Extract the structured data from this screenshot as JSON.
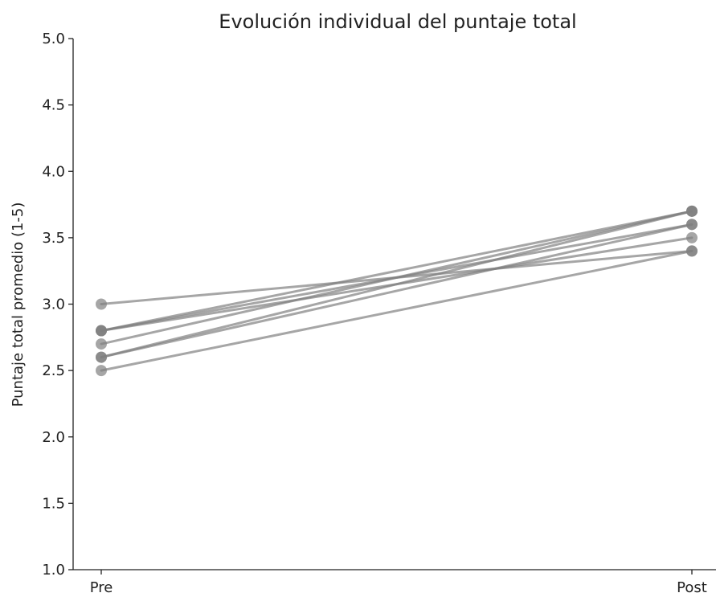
{
  "chart_data": {
    "type": "line",
    "title": "Evolución individual del puntaje total",
    "xlabel": "",
    "ylabel": "Puntaje total promedio (1-5)",
    "categories": [
      "Pre",
      "Post"
    ],
    "ylim": [
      1.0,
      5.0
    ],
    "yticks": [
      "1.0",
      "1.5",
      "2.0",
      "2.5",
      "3.0",
      "3.5",
      "4.0",
      "4.5",
      "5.0"
    ],
    "grid": false,
    "line_color": "#808080",
    "series": [
      {
        "values": [
          3.0,
          3.4
        ]
      },
      {
        "values": [
          2.8,
          3.7
        ]
      },
      {
        "values": [
          2.8,
          3.6
        ]
      },
      {
        "values": [
          2.8,
          3.5
        ]
      },
      {
        "values": [
          2.7,
          3.7
        ]
      },
      {
        "values": [
          2.6,
          3.6
        ]
      },
      {
        "values": [
          2.6,
          3.7
        ]
      },
      {
        "values": [
          2.5,
          3.4
        ]
      }
    ]
  }
}
